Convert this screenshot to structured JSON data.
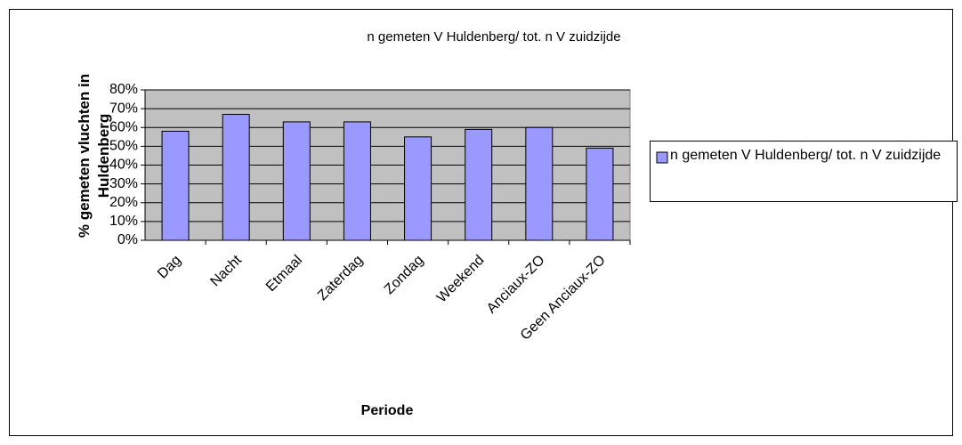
{
  "chart_data": {
    "type": "bar",
    "title": "n gemeten V Huldenberg/ tot. n V zuidzijde",
    "xlabel": "Periode",
    "ylabel": "% gemeten vluchten in Huldenberg",
    "categories": [
      "Dag",
      "Nacht",
      "Etmaal",
      "Zaterdag",
      "Zondag",
      "Weekend",
      "Anciaux-ZO",
      "Geen Anciaux-ZO"
    ],
    "series": [
      {
        "name": "n gemeten V Huldenberg/ tot. n V zuidzijde",
        "color": "#9999ff",
        "values": [
          58,
          67,
          63,
          63,
          55,
          59,
          60,
          49
        ]
      }
    ],
    "ylim": [
      0,
      80
    ],
    "yticks": [
      {
        "value": 0,
        "label": "0%"
      },
      {
        "value": 10,
        "label": "10%"
      },
      {
        "value": 20,
        "label": "20%"
      },
      {
        "value": 30,
        "label": "30%"
      },
      {
        "value": 40,
        "label": "40%"
      },
      {
        "value": 50,
        "label": "50%"
      },
      {
        "value": 60,
        "label": "60%"
      },
      {
        "value": 70,
        "label": "70%"
      },
      {
        "value": 80,
        "label": "80%"
      }
    ],
    "grid": true,
    "legend": "right"
  }
}
